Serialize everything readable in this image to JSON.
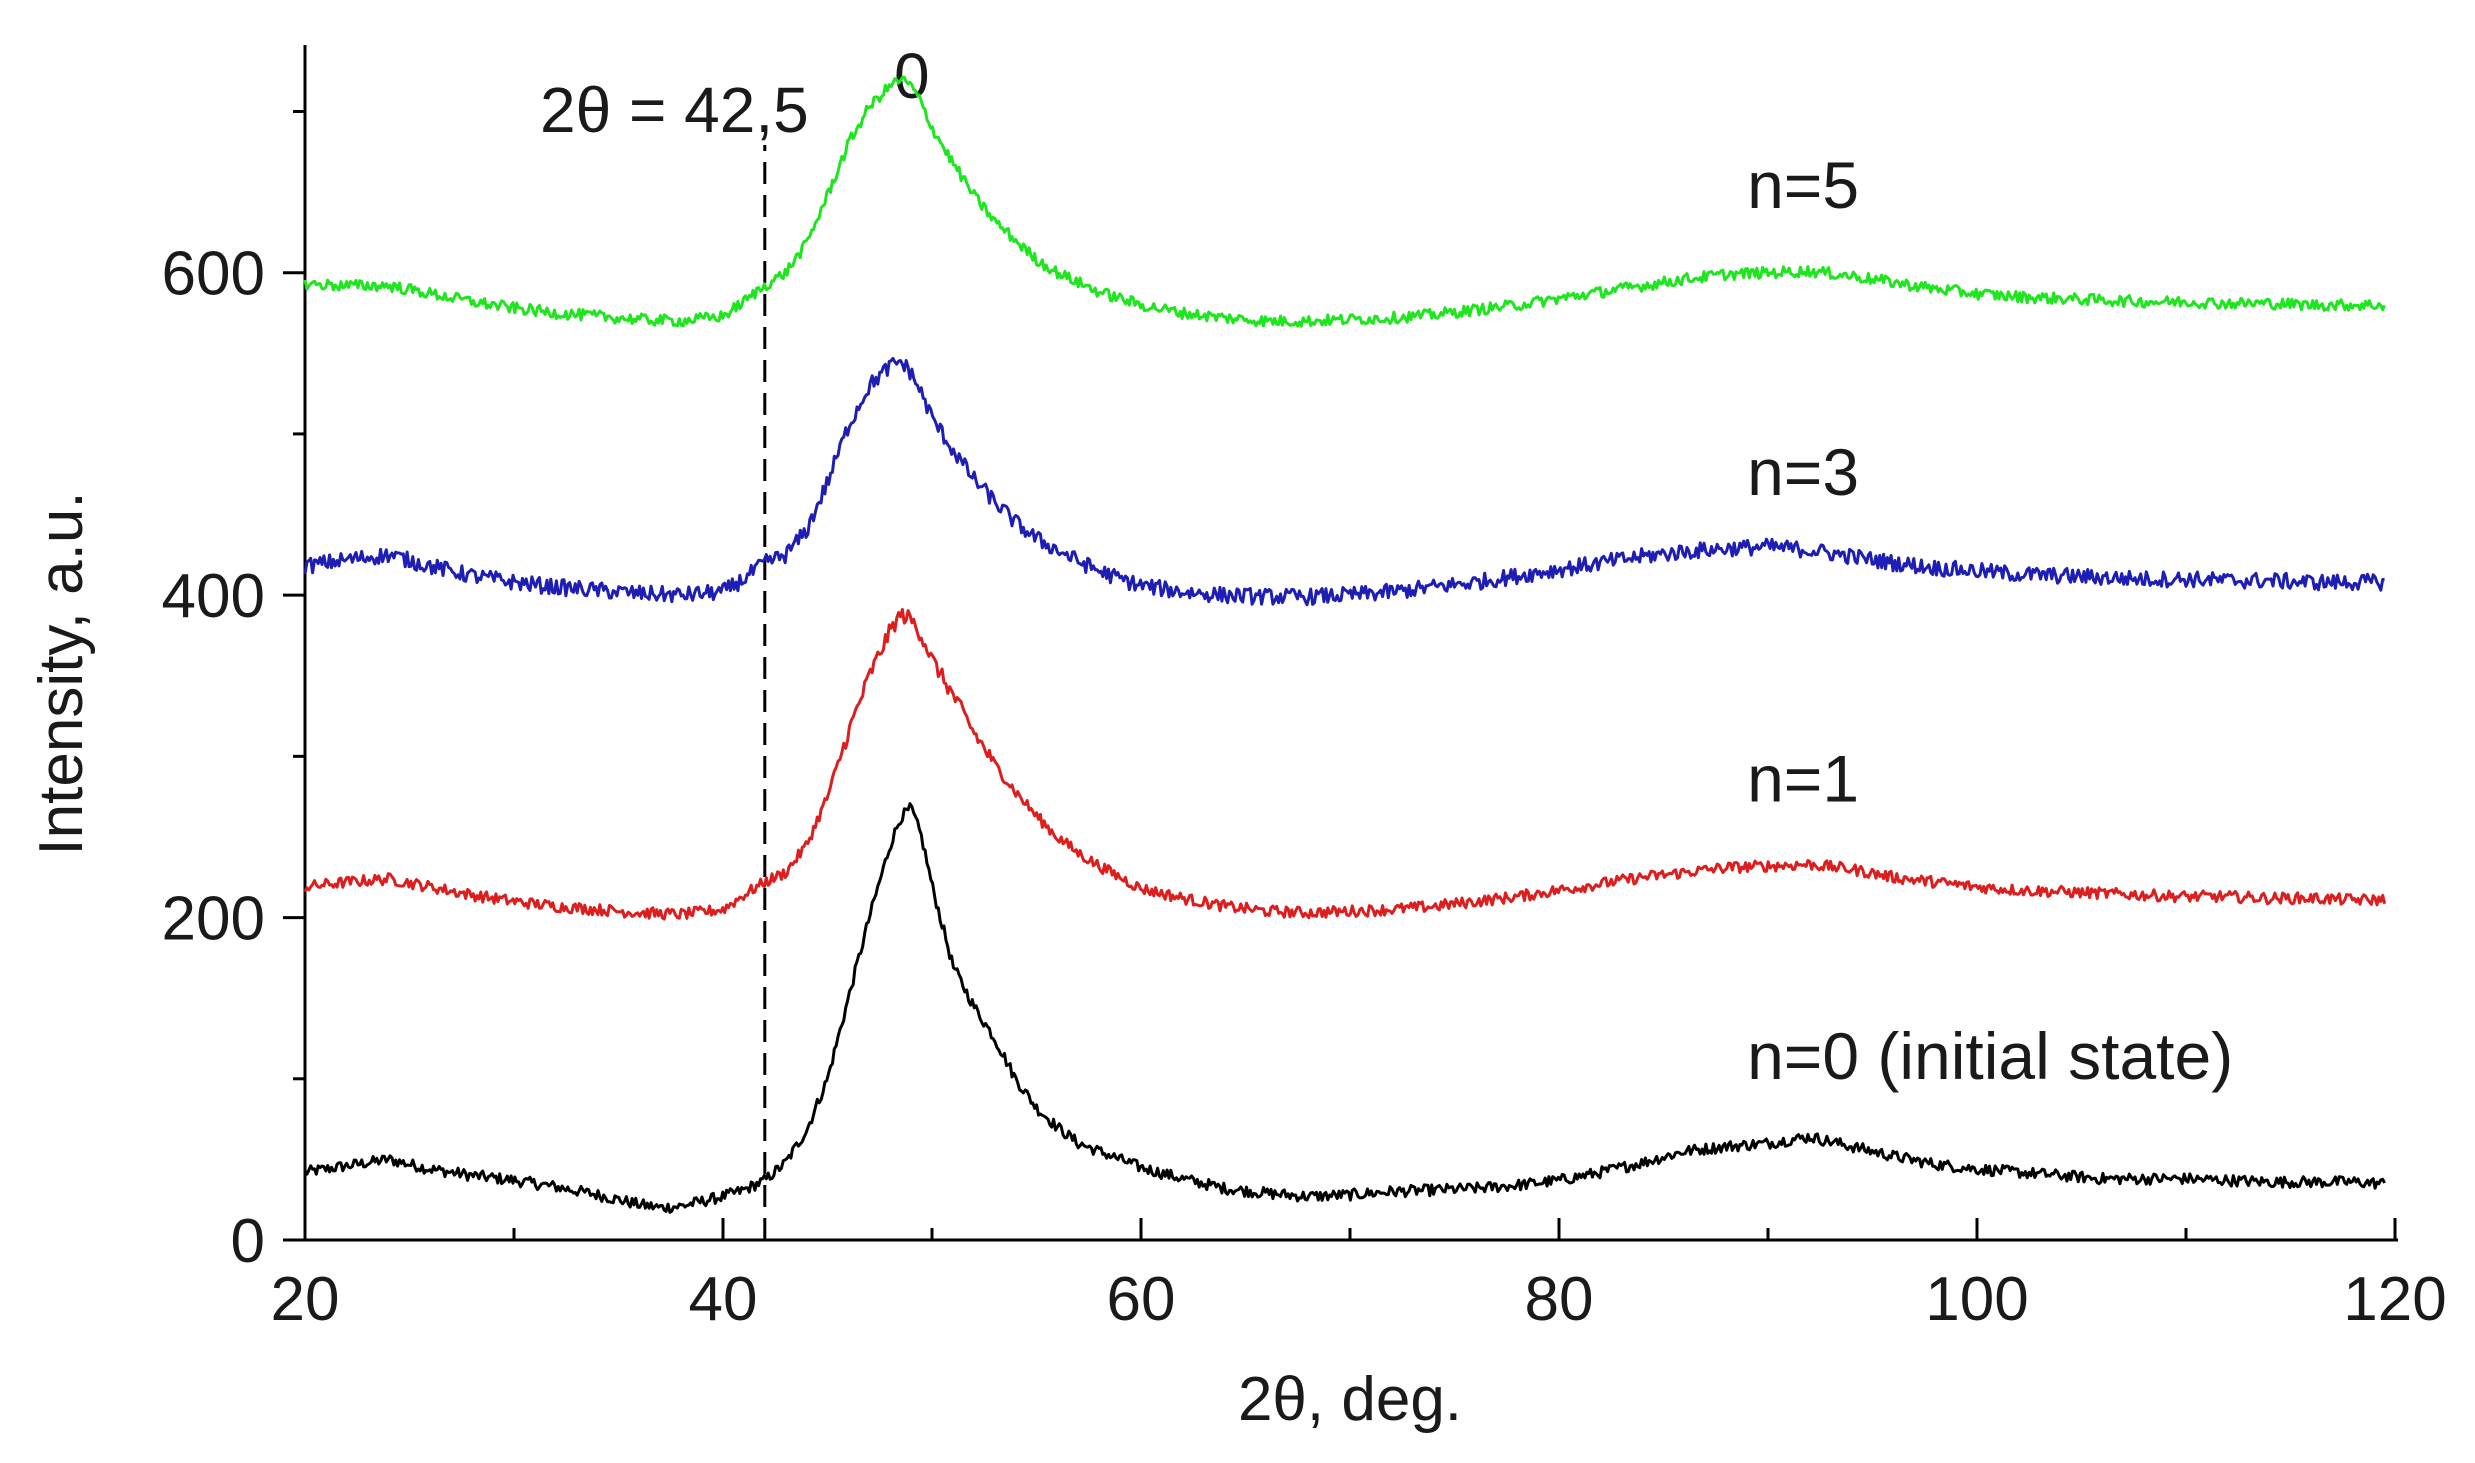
{
  "chart_data": {
    "type": "line",
    "title": "",
    "xlabel": "2θ, deg.",
    "ylabel": "Intensity, a.u.",
    "xlim": [
      20,
      120
    ],
    "ylim": [
      0,
      740
    ],
    "x_major_ticks": [
      20,
      40,
      60,
      80,
      100,
      120
    ],
    "x_minor_ticks": [
      30,
      50,
      70,
      90,
      110
    ],
    "y_major_ticks": [
      0,
      200,
      400,
      600
    ],
    "y_minor_ticks": [
      100,
      300,
      500,
      700
    ],
    "x_tick_labels": [
      "20",
      "40",
      "60",
      "80",
      "100",
      "120"
    ],
    "y_tick_labels": [
      "0",
      "200",
      "400",
      "600"
    ],
    "grid": false,
    "reference_line": {
      "x": 42,
      "label": "2θ = 42,5",
      "label_superscript": "0",
      "style": "dashed"
    },
    "series": [
      {
        "name": "n=0 (initial state)",
        "color": "#000000",
        "label_at": [
          89,
          100
        ],
        "x": [
          20,
          22,
          24,
          26,
          28,
          30,
          32,
          34,
          36,
          37,
          38,
          40,
          41,
          42,
          43,
          44,
          45,
          46,
          47,
          48,
          48.5,
          49,
          49.5,
          50,
          51,
          52,
          53,
          54,
          55,
          56,
          57,
          58,
          59,
          60,
          62,
          64,
          66,
          68,
          70,
          72,
          74,
          76,
          78,
          80,
          82,
          84,
          86,
          88,
          90,
          92,
          94,
          96,
          98,
          100,
          102,
          104,
          106,
          108,
          110,
          112,
          114,
          116,
          118,
          119.5
        ],
        "y": [
          42,
          46,
          50,
          44,
          40,
          37,
          33,
          28,
          22,
          20,
          21,
          27,
          31,
          37,
          48,
          68,
          100,
          150,
          200,
          245,
          262,
          268,
          250,
          220,
          170,
          145,
          125,
          100,
          82,
          70,
          60,
          55,
          50,
          45,
          38,
          32,
          29,
          27,
          28,
          30,
          31,
          32,
          34,
          37,
          42,
          48,
          55,
          58,
          60,
          64,
          58,
          52,
          47,
          44,
          42,
          40,
          38,
          38,
          38,
          37,
          36,
          36,
          36,
          35
        ]
      },
      {
        "name": "n=1",
        "color": "#dc1e1e",
        "label_at": [
          89,
          272
        ],
        "x": [
          20,
          22,
          24,
          26,
          28,
          30,
          32,
          34,
          36,
          38,
          40,
          41,
          42,
          43,
          44,
          45,
          46,
          47,
          48,
          48.5,
          49,
          49.5,
          50,
          51,
          52,
          53,
          54,
          55,
          56,
          57,
          58,
          59,
          60,
          62,
          64,
          66,
          68,
          70,
          72,
          74,
          76,
          78,
          80,
          82,
          84,
          86,
          88,
          90,
          92,
          94,
          96,
          98,
          100,
          102,
          104,
          106,
          108,
          110,
          112,
          114,
          116,
          118,
          119.5
        ],
        "y": [
          219,
          222,
          224,
          219,
          214,
          210,
          207,
          205,
          203,
          202,
          205,
          214,
          222,
          228,
          245,
          275,
          315,
          350,
          378,
          388,
          385,
          375,
          360,
          338,
          315,
          295,
          278,
          263,
          250,
          240,
          232,
          225,
          218,
          212,
          207,
          204,
          203,
          204,
          205,
          207,
          210,
          213,
          217,
          221,
          225,
          228,
          231,
          232,
          233,
          230,
          225,
          222,
          219,
          217,
          216,
          215,
          214,
          213,
          213,
          212,
          212,
          211,
          211
        ]
      },
      {
        "name": "n=3",
        "color": "#1e1eb4",
        "label_at": [
          89,
          462
        ],
        "x": [
          20,
          22,
          24,
          26,
          28,
          30,
          32,
          34,
          36,
          38,
          40,
          41,
          42,
          43,
          44,
          45,
          46,
          47,
          48,
          48.5,
          49,
          49.5,
          50,
          51,
          52,
          53,
          54,
          55,
          56,
          57,
          58,
          59,
          60,
          62,
          64,
          66,
          68,
          70,
          72,
          74,
          76,
          78,
          80,
          82,
          84,
          86,
          88,
          90,
          92,
          94,
          96,
          98,
          100,
          102,
          104,
          106,
          108,
          110,
          112,
          114,
          116,
          118,
          119.5
        ],
        "y": [
          418,
          422,
          425,
          418,
          412,
          408,
          405,
          403,
          401,
          400,
          402,
          410,
          420,
          425,
          440,
          470,
          505,
          530,
          542,
          545,
          538,
          525,
          510,
          490,
          472,
          458,
          445,
          435,
          428,
          421,
          415,
          410,
          406,
          402,
          400,
          399,
          399,
          400,
          402,
          405,
          408,
          412,
          416,
          420,
          424,
          427,
          429,
          430,
          428,
          424,
          420,
          417,
          415,
          413,
          412,
          411,
          410,
          410,
          409,
          409,
          408,
          408,
          408
        ]
      },
      {
        "name": "n=5",
        "color": "#1ee61e",
        "label_at": [
          89,
          640
        ],
        "x": [
          20,
          22,
          24,
          26,
          28,
          30,
          32,
          34,
          36,
          38,
          40,
          41,
          42,
          43,
          44,
          45,
          46,
          47,
          48,
          48.5,
          49,
          49.5,
          50,
          51,
          52,
          53,
          54,
          55,
          56,
          57,
          58,
          59,
          60,
          62,
          64,
          66,
          68,
          70,
          72,
          74,
          76,
          78,
          80,
          82,
          84,
          86,
          88,
          90,
          92,
          94,
          96,
          98,
          100,
          102,
          104,
          106,
          108,
          110,
          112,
          114,
          116,
          118,
          119.5
        ],
        "y": [
          593,
          592,
          592,
          587,
          582,
          578,
          575,
          573,
          571,
          570,
          573,
          582,
          592,
          600,
          618,
          648,
          680,
          703,
          716,
          720,
          716,
          705,
          690,
          668,
          648,
          632,
          620,
          608,
          600,
          594,
          588,
          584,
          580,
          575,
          572,
          570,
          570,
          571,
          572,
          574,
          577,
          580,
          584,
          588,
          592,
          596,
          599,
          600,
          601,
          598,
          594,
          590,
          587,
          585,
          584,
          583,
          582,
          582,
          581,
          581,
          580,
          580,
          580
        ]
      }
    ]
  }
}
